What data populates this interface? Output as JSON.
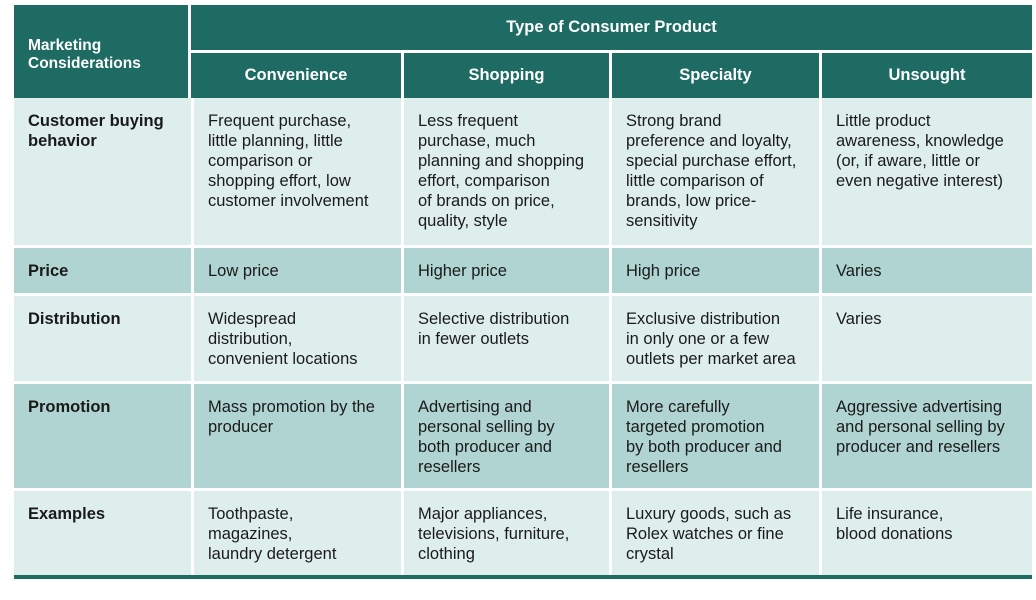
{
  "header": {
    "corner_label": [
      "Marketing",
      "Considerations"
    ],
    "group_title": "Type of Consumer Product",
    "columns": [
      "Convenience",
      "Shopping",
      "Specialty",
      "Unsought"
    ]
  },
  "rows": [
    {
      "label": [
        "Customer buying",
        "behavior"
      ],
      "cells": [
        [
          "Frequent purchase,",
          "little planning, little",
          "comparison or",
          "shopping effort, low",
          "customer involvement"
        ],
        [
          "Less frequent",
          "purchase, much",
          "planning and shopping",
          "effort, comparison",
          "of brands on price,",
          "quality, style"
        ],
        [
          "Strong brand",
          "preference and loyalty,",
          "special purchase effort,",
          "little comparison of",
          "brands, low price-",
          "sensitivity"
        ],
        [
          "Little product",
          "awareness, knowledge",
          "(or, if aware, little or",
          "even negative interest)"
        ]
      ]
    },
    {
      "label": [
        "Price"
      ],
      "cells": [
        [
          "Low price"
        ],
        [
          "Higher price"
        ],
        [
          "High price"
        ],
        [
          "Varies"
        ]
      ]
    },
    {
      "label": [
        "Distribution"
      ],
      "cells": [
        [
          "Widespread",
          "distribution,",
          "convenient locations"
        ],
        [
          "Selective distribution",
          "in fewer outlets"
        ],
        [
          "Exclusive distribution",
          "in only one or a few",
          "outlets per market area"
        ],
        [
          "Varies"
        ]
      ]
    },
    {
      "label": [
        "Promotion"
      ],
      "cells": [
        [
          "Mass promotion by the",
          "producer"
        ],
        [
          "Advertising and",
          "personal selling by",
          "both producer and",
          "resellers"
        ],
        [
          "More carefully",
          "targeted promotion",
          "by both producer and",
          "resellers"
        ],
        [
          "Aggressive advertising",
          "and personal selling by",
          "producer and resellers"
        ]
      ]
    },
    {
      "label": [
        "Examples"
      ],
      "cells": [
        [
          "Toothpaste,",
          "magazines,",
          "laundry detergent"
        ],
        [
          "Major appliances,",
          "televisions, furniture,",
          "clothing"
        ],
        [
          "Luxury goods, such as",
          "Rolex watches or fine",
          "crystal"
        ],
        [
          "Life insurance,",
          "blood donations"
        ]
      ]
    }
  ],
  "colors": {
    "header_bg": "#1e6b63",
    "row_light": "#ddeeed",
    "row_dark": "#b0d4d1"
  }
}
